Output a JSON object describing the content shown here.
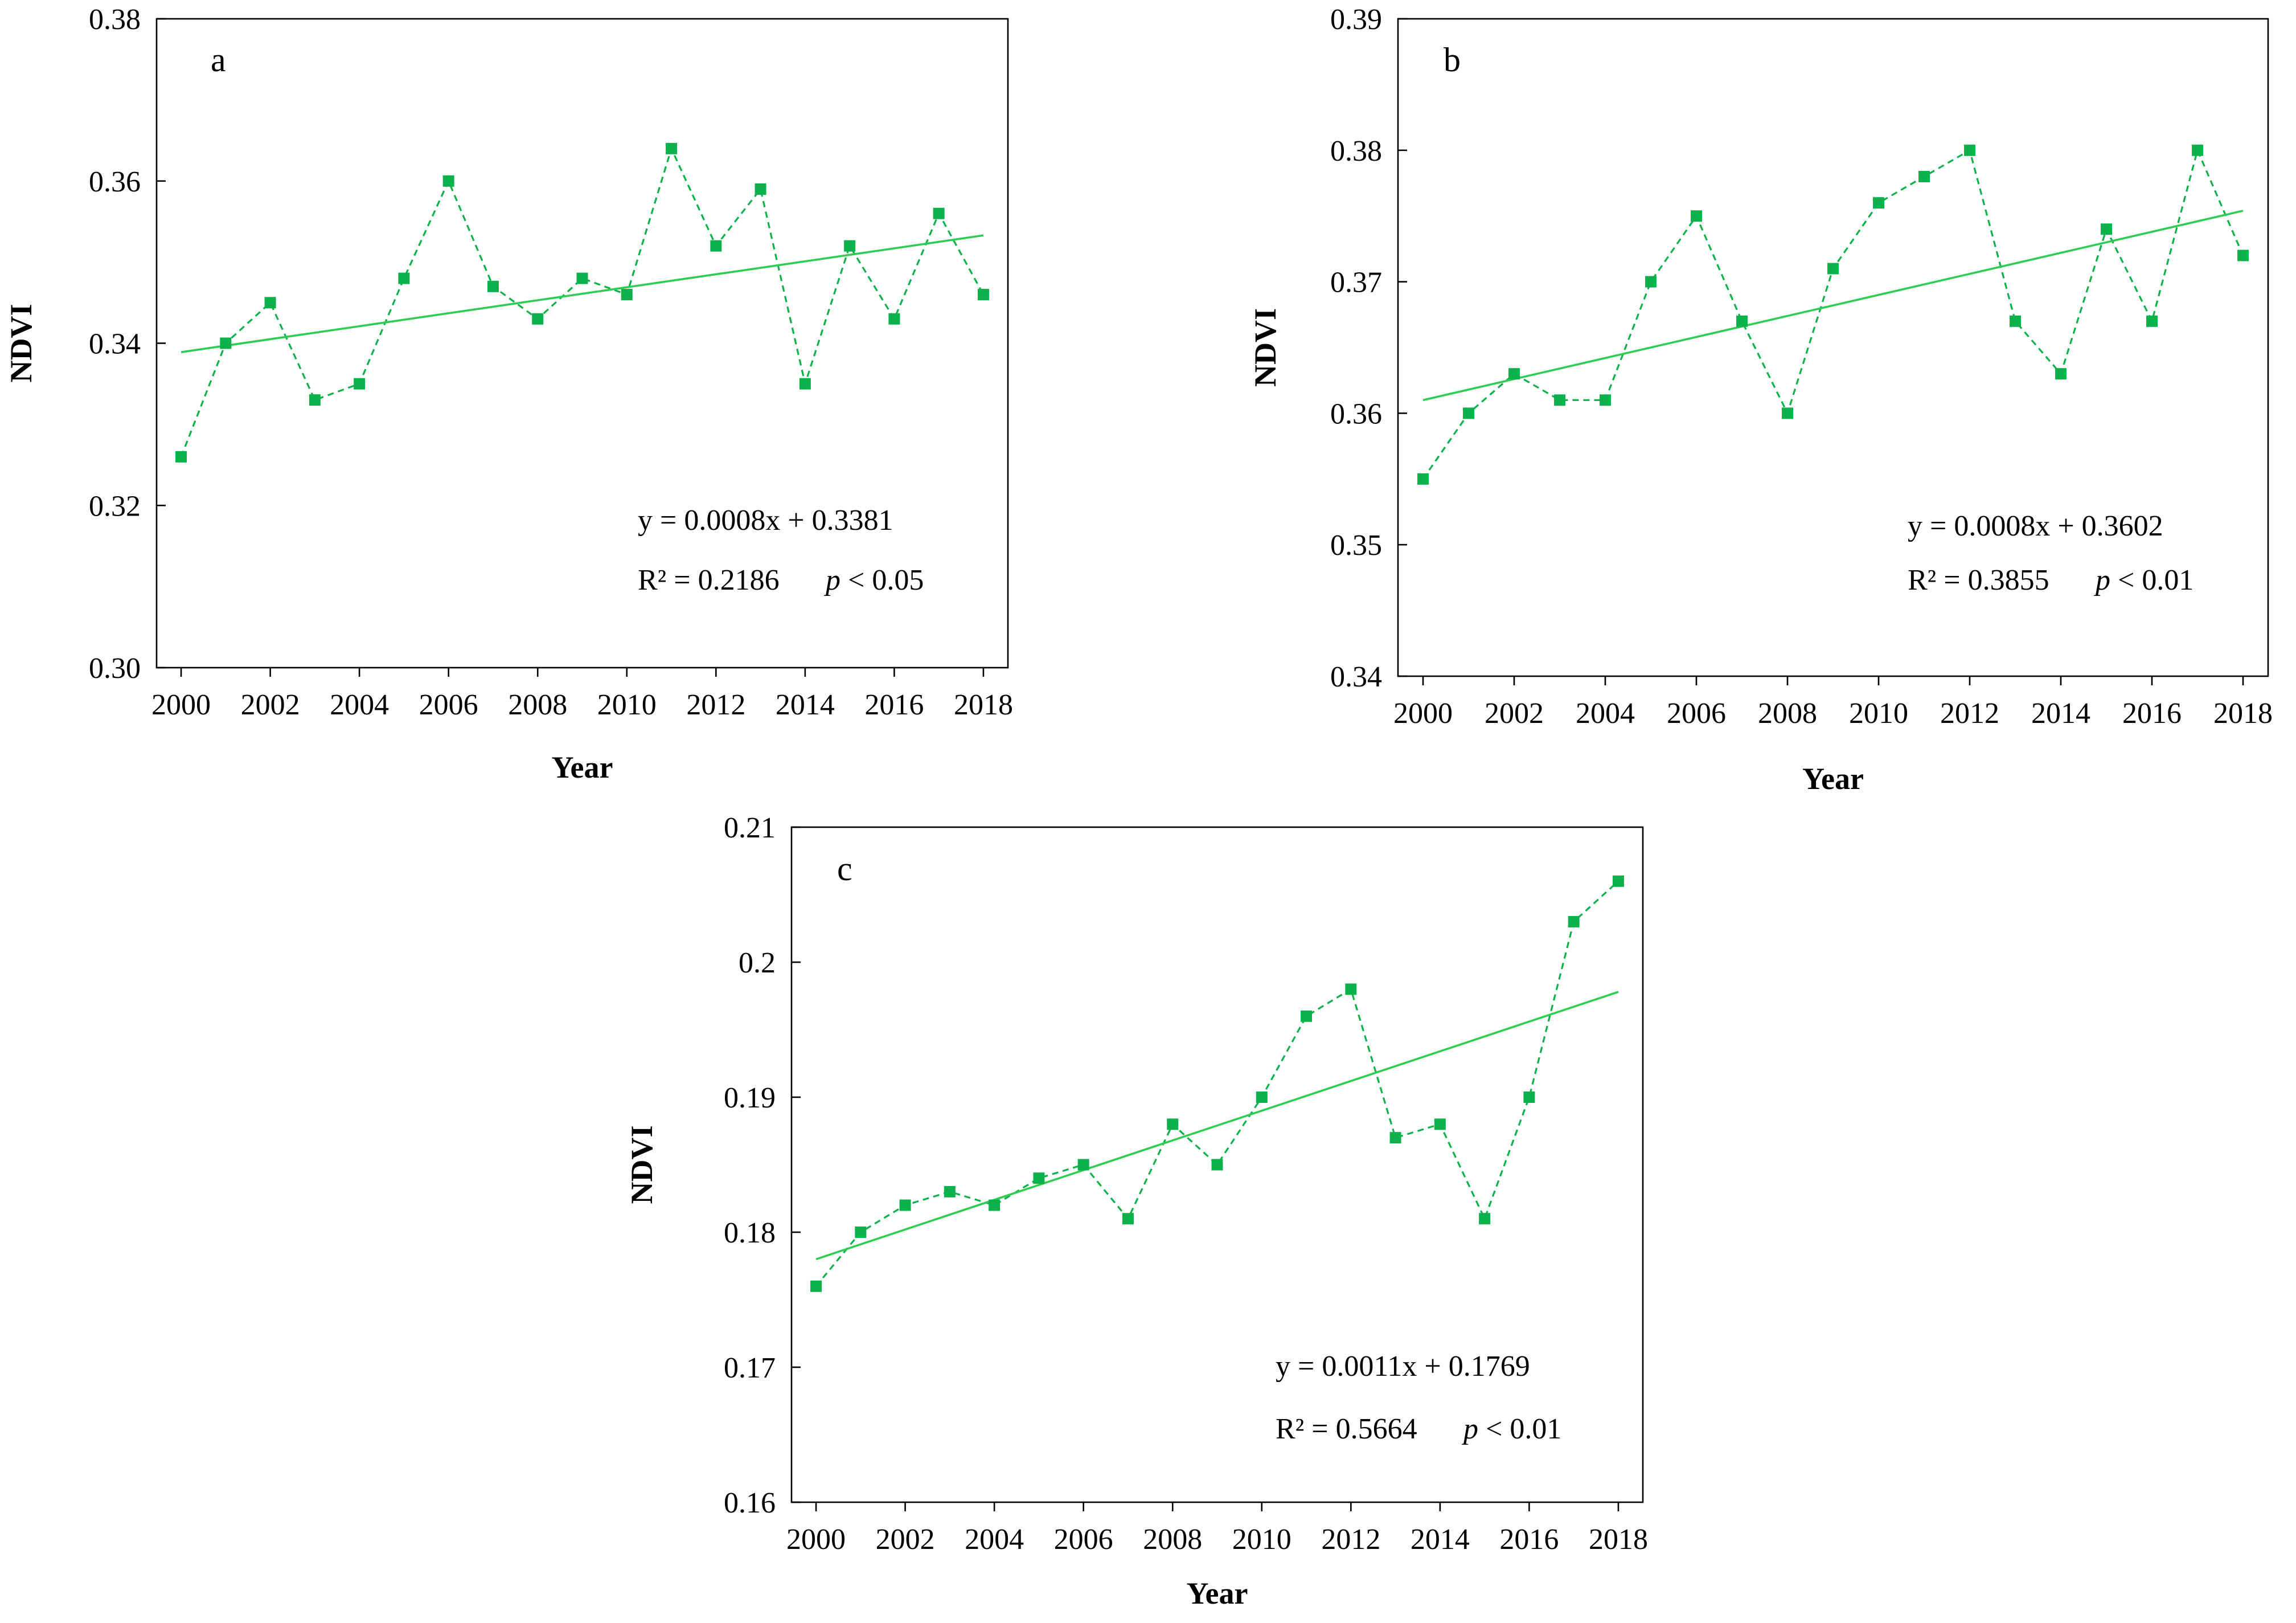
{
  "colors": {
    "series": "#0db14b",
    "trend": "#2ecc52",
    "axis": "#000000"
  },
  "chart_data": [
    {
      "panel": "a",
      "type": "line",
      "series_style": "dashed line with square markers",
      "x": [
        2000,
        2001,
        2002,
        2003,
        2004,
        2005,
        2006,
        2007,
        2008,
        2009,
        2010,
        2011,
        2012,
        2013,
        2014,
        2015,
        2016,
        2017,
        2018
      ],
      "values": [
        0.326,
        0.34,
        0.345,
        0.333,
        0.335,
        0.348,
        0.36,
        0.347,
        0.343,
        0.348,
        0.346,
        0.364,
        0.352,
        0.359,
        0.335,
        0.352,
        0.343,
        0.356,
        0.346
      ],
      "trend": {
        "slope": 0.0008,
        "intercept": 0.3381
      },
      "xlim": [
        1999.45,
        2018.55
      ],
      "ylim": [
        0.3,
        0.38
      ],
      "xticks": [
        "2000",
        "2002",
        "2004",
        "2006",
        "2008",
        "2010",
        "2012",
        "2014",
        "2016",
        "2018"
      ],
      "yticks": [
        "0.30",
        "0.32",
        "0.34",
        "0.36",
        "0.38"
      ],
      "xlabel": "Year",
      "ylabel": "NDVI",
      "equation": "y = 0.0008x + 0.3381",
      "r2_label": "R² = 0.2186",
      "p_symbol": "p",
      "p_rest": " < 0.05"
    },
    {
      "panel": "b",
      "type": "line",
      "series_style": "dashed line with square markers",
      "x": [
        2000,
        2001,
        2002,
        2003,
        2004,
        2005,
        2006,
        2007,
        2008,
        2009,
        2010,
        2011,
        2012,
        2013,
        2014,
        2015,
        2016,
        2017,
        2018
      ],
      "values": [
        0.355,
        0.36,
        0.363,
        0.361,
        0.361,
        0.37,
        0.375,
        0.367,
        0.36,
        0.371,
        0.376,
        0.378,
        0.38,
        0.367,
        0.363,
        0.374,
        0.367,
        0.38,
        0.372
      ],
      "trend": {
        "slope": 0.0008,
        "intercept": 0.3602
      },
      "xlim": [
        1999.45,
        2018.55
      ],
      "ylim": [
        0.34,
        0.39
      ],
      "xticks": [
        "2000",
        "2002",
        "2004",
        "2006",
        "2008",
        "2010",
        "2012",
        "2014",
        "2016",
        "2018"
      ],
      "yticks": [
        "0.34",
        "0.35",
        "0.36",
        "0.37",
        "0.38",
        "0.39"
      ],
      "xlabel": "Year",
      "ylabel": "NDVI",
      "equation": "y = 0.0008x + 0.3602",
      "r2_label": "R² = 0.3855",
      "p_symbol": "p",
      "p_rest": " < 0.01"
    },
    {
      "panel": "c",
      "type": "line",
      "series_style": "dashed line with square markers",
      "x": [
        2000,
        2001,
        2002,
        2003,
        2004,
        2005,
        2006,
        2007,
        2008,
        2009,
        2010,
        2011,
        2012,
        2013,
        2014,
        2015,
        2016,
        2017,
        2018
      ],
      "values": [
        0.176,
        0.18,
        0.182,
        0.183,
        0.182,
        0.184,
        0.185,
        0.181,
        0.188,
        0.185,
        0.19,
        0.196,
        0.198,
        0.187,
        0.188,
        0.181,
        0.19,
        0.203,
        0.206
      ],
      "trend": {
        "slope": 0.0011,
        "intercept": 0.1769
      },
      "xlim": [
        1999.45,
        2018.55
      ],
      "ylim": [
        0.16,
        0.21
      ],
      "xticks": [
        "2000",
        "2002",
        "2004",
        "2006",
        "2008",
        "2010",
        "2012",
        "2014",
        "2016",
        "2018"
      ],
      "yticks": [
        "0.16",
        "0.17",
        "0.18",
        "0.19",
        "0.2",
        "0.21"
      ],
      "xlabel": "Year",
      "ylabel": "NDVI",
      "equation": "y = 0.0011x + 0.1769",
      "r2_label": "R² = 0.5664",
      "p_symbol": "p",
      "p_rest": " < 0.01"
    }
  ]
}
